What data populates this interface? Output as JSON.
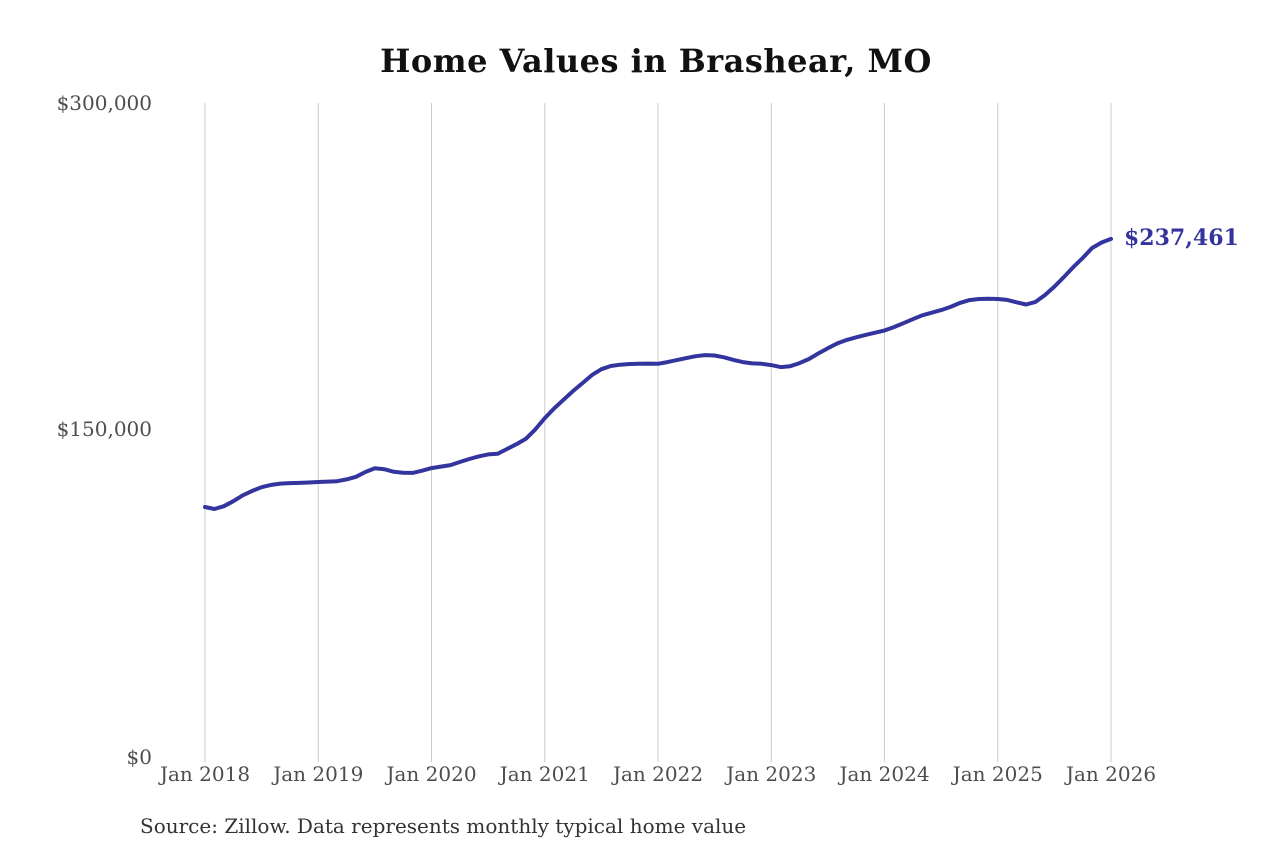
{
  "page": {
    "background_color": "#ffffff"
  },
  "chart_data": {
    "type": "line",
    "title": "Home Values in Brashear, MO",
    "source_note": "Source: Zillow. Data represents monthly typical home value",
    "series_name": "Monthly typical home value",
    "x_start": "Jan 2018",
    "x_end": "Jan 2026",
    "x_interval": "monthly",
    "x_tick_labels": [
      "Jan 2018",
      "Jan 2019",
      "Jan 2020",
      "Jan 2021",
      "Jan 2022",
      "Jan 2023",
      "Jan 2024",
      "Jan 2025",
      "Jan 2026"
    ],
    "y_tick_labels": [
      "$0",
      "$150,000",
      "$300,000"
    ],
    "ylim": [
      0,
      300000
    ],
    "grid": "vertical-only",
    "legend": "none",
    "line_color": "#34349e",
    "gridline_color": "#cccccc",
    "end_label": "$237,461",
    "latest_value": 237461,
    "values": [
      114100,
      113200,
      114500,
      116800,
      119500,
      121500,
      123200,
      124300,
      124900,
      125100,
      125200,
      125400,
      125600,
      125800,
      126000,
      126800,
      128000,
      130200,
      131900,
      131500,
      130300,
      129900,
      129800,
      130800,
      132000,
      132700,
      133400,
      134800,
      136200,
      137400,
      138300,
      138600,
      140800,
      143000,
      145500,
      149800,
      155000,
      159500,
      163500,
      167500,
      171100,
      174800,
      177500,
      179000,
      179600,
      179900,
      180000,
      180100,
      180000,
      180800,
      181700,
      182600,
      183500,
      184000,
      183800,
      183000,
      181800,
      180800,
      180200,
      180000,
      179400,
      178500,
      178900,
      180300,
      182200,
      184800,
      187200,
      189400,
      191000,
      192200,
      193300,
      194300,
      195300,
      196900,
      198700,
      200500,
      202300,
      203500,
      204700,
      206200,
      208000,
      209300,
      209800,
      209900,
      209800,
      209400,
      208300,
      207300,
      208500,
      211600,
      215500,
      219900,
      224500,
      228700,
      233300,
      235800,
      237461
    ]
  }
}
